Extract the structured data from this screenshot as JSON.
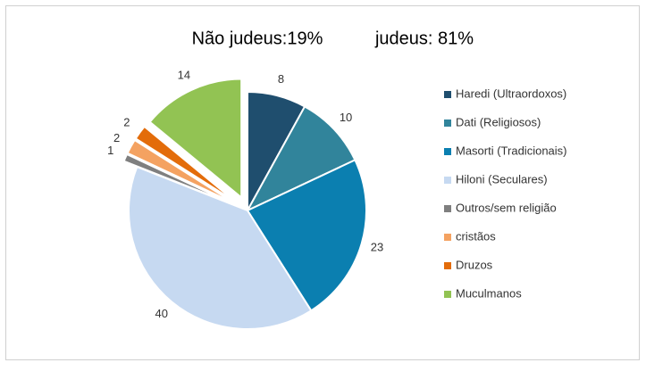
{
  "chart_data": {
    "type": "pie",
    "annotations": [
      "Não judeus:19%",
      "judeus: 81%"
    ],
    "categories": [
      "Haredi (Ultraordoxos)",
      "Dati (Religiosos)",
      "Masorti (Tradicionais)",
      "Hiloni (Seculares)",
      "Outros/sem religião",
      "cristãos",
      "Druzos",
      "Muculmanos"
    ],
    "values": [
      8,
      10,
      23,
      40,
      1,
      2,
      2,
      14
    ],
    "colors": [
      "#1f4e6e",
      "#31849b",
      "#0b7fb0",
      "#c6d9f1",
      "#7f7f7f",
      "#f4a261",
      "#e36c0a",
      "#92c353"
    ],
    "explode": [
      false,
      false,
      false,
      false,
      true,
      true,
      true,
      true
    ],
    "legend": "right"
  }
}
